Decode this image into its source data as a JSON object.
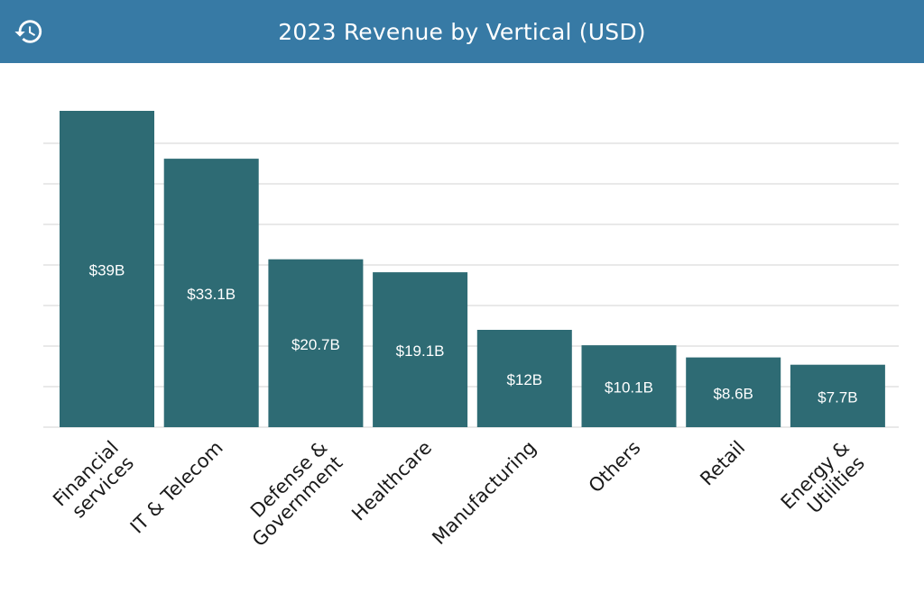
{
  "header": {
    "title": "2023 Revenue by Vertical (USD)",
    "history_icon": "history-icon"
  },
  "colors": {
    "header_bg": "#377aa5",
    "bar": "#2e6b74",
    "grid": "#dcdcdc",
    "axis_text": "#1a1a1a",
    "bar_label": "#ffffff"
  },
  "chart_data": {
    "type": "bar",
    "title": "2023 Revenue by Vertical (USD)",
    "categories": [
      [
        "Financial",
        "services"
      ],
      [
        "IT & Telecom"
      ],
      [
        "Defense &",
        "Government"
      ],
      [
        "Healthcare"
      ],
      [
        "Manufacturing"
      ],
      [
        "Others"
      ],
      [
        "Retail"
      ],
      [
        "Energy &",
        "Utilities"
      ]
    ],
    "values": [
      39,
      33.1,
      20.7,
      19.1,
      12,
      10.1,
      8.6,
      7.7
    ],
    "data_labels": [
      "$39B",
      "$33.1B",
      "$20.7B",
      "$19.1B",
      "$12B",
      "$10.1B",
      "$8.6B",
      "$7.7B"
    ],
    "unit": "B USD",
    "ylim": [
      0,
      40
    ],
    "grid_step": 5,
    "grid": true,
    "y_tick_labels_shown": false,
    "legend": "none"
  }
}
